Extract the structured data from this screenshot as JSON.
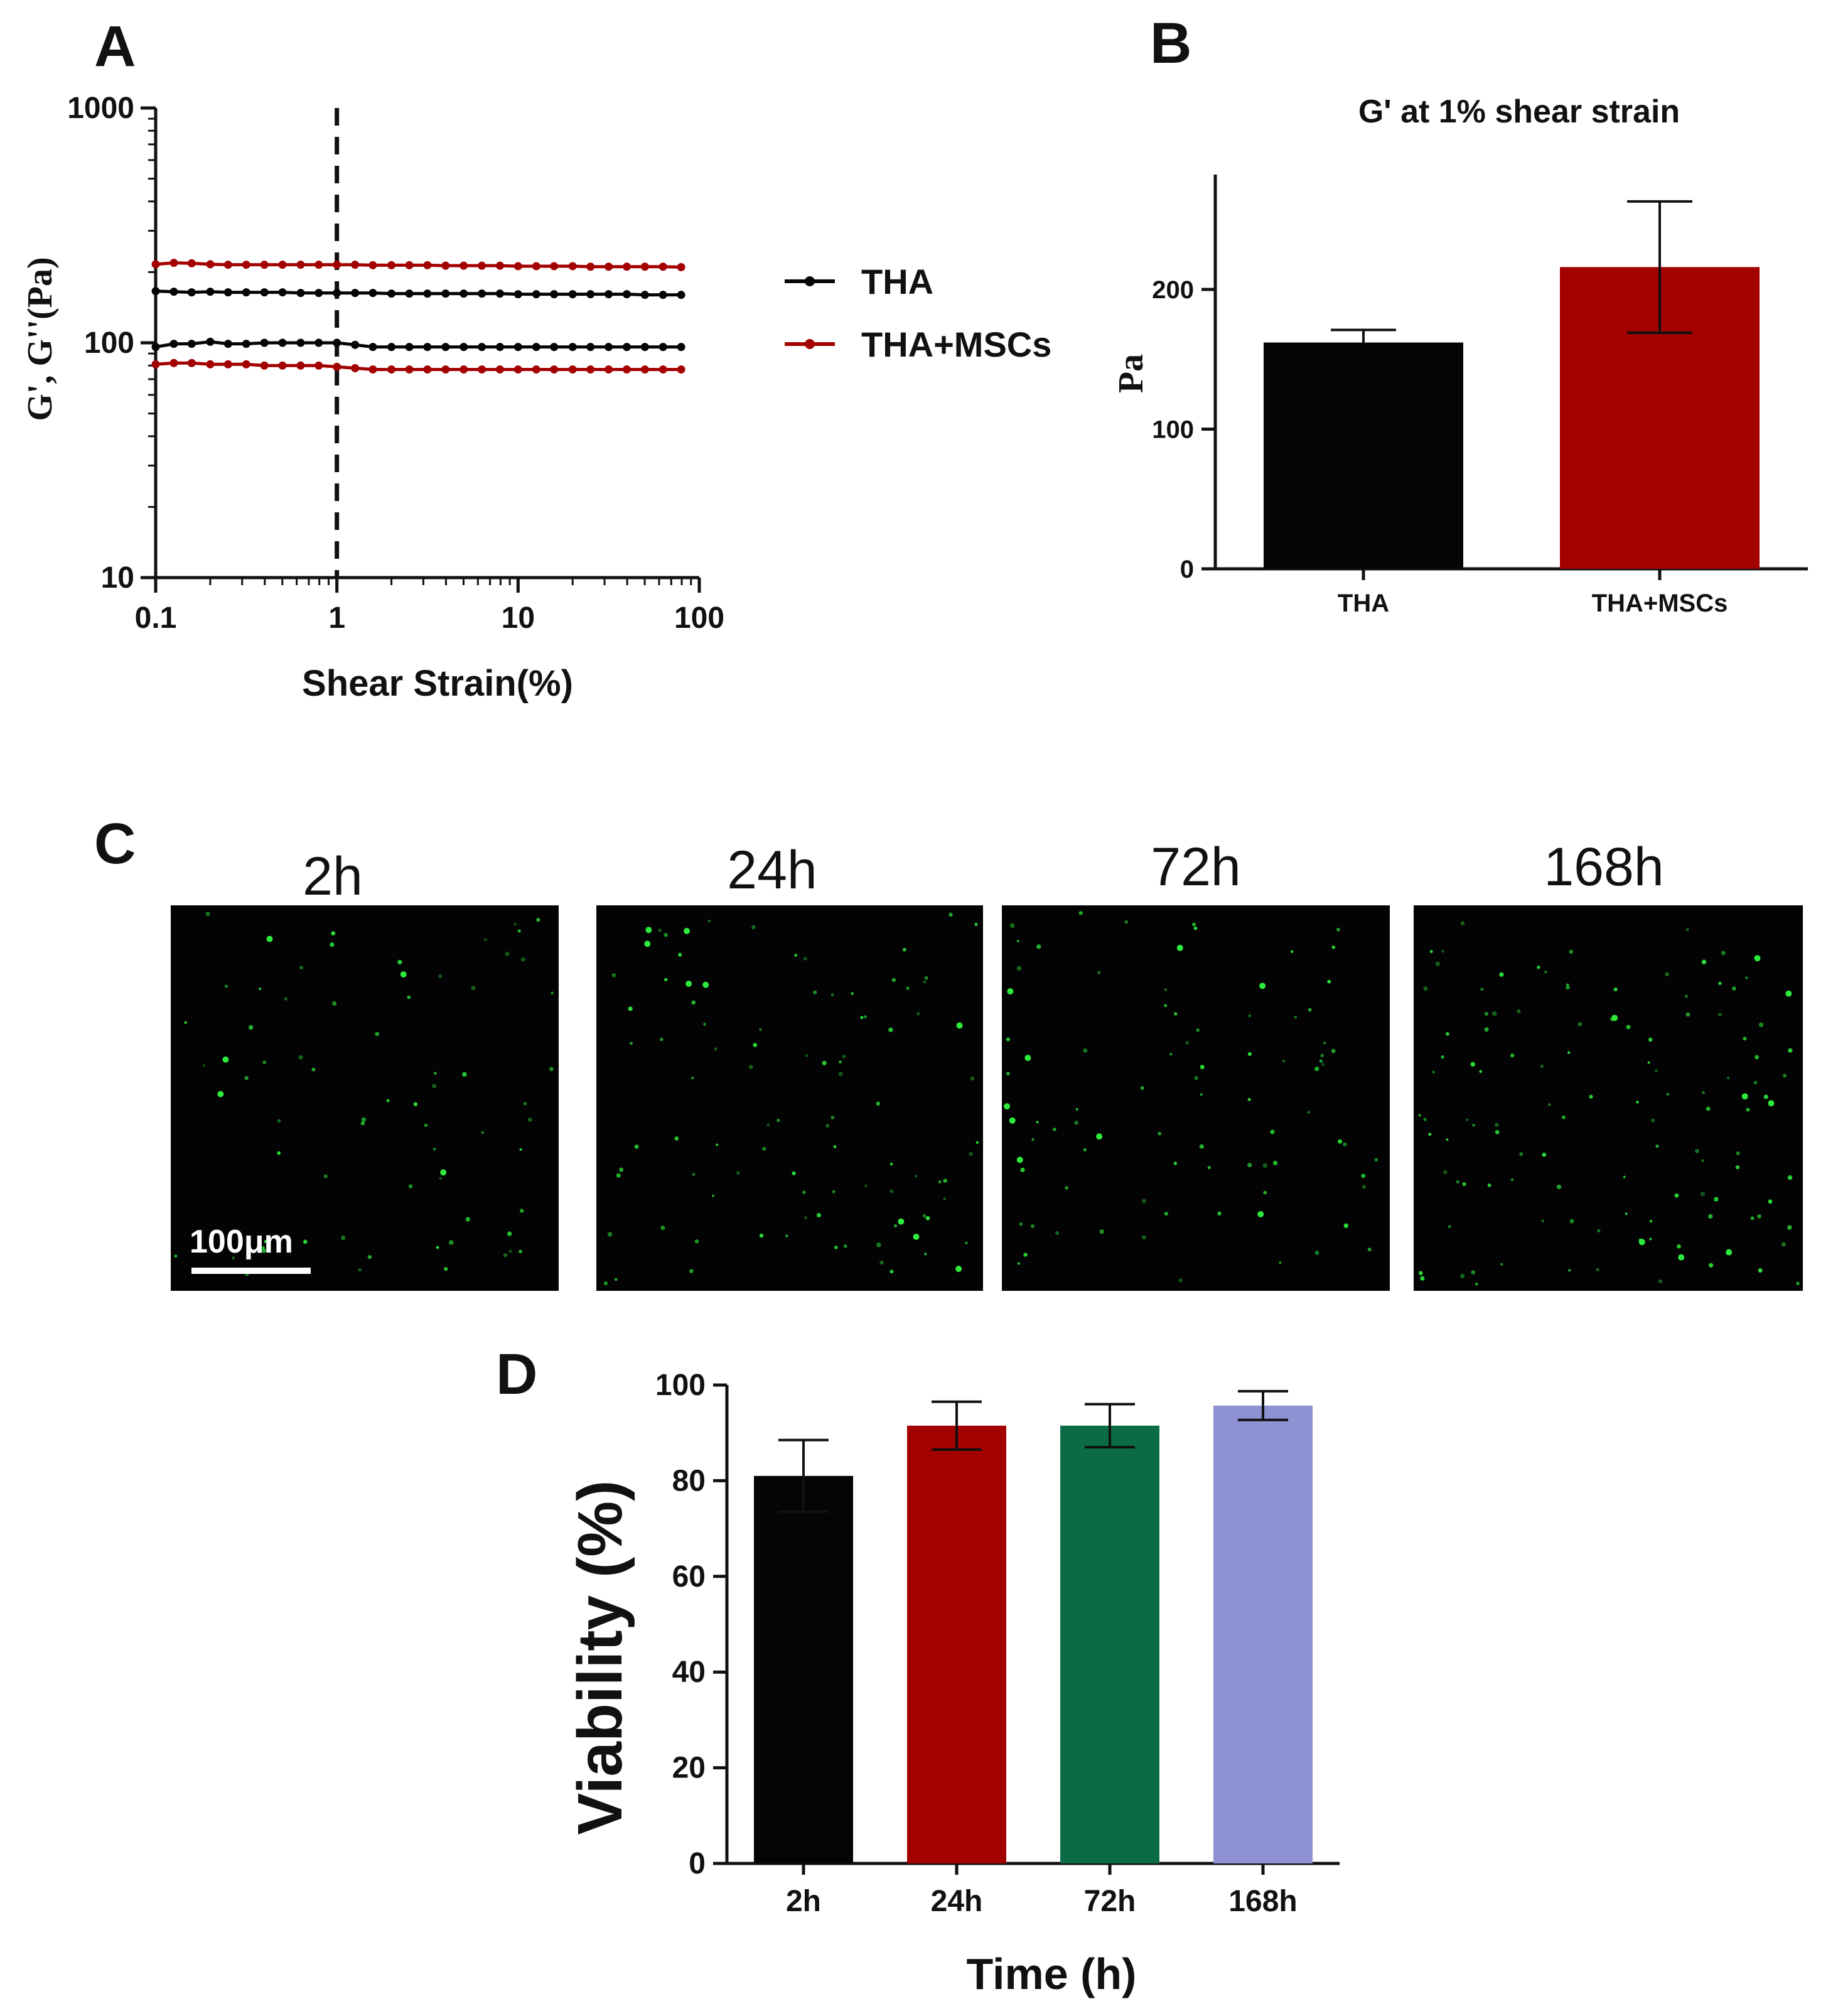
{
  "panels": {
    "a": {
      "letter": "A"
    },
    "b": {
      "letter": "B"
    },
    "c": {
      "letter": "C",
      "scale_bar": "100μm",
      "times": [
        "2h",
        "24h",
        "72h",
        "168h"
      ]
    },
    "d": {
      "letter": "D"
    }
  },
  "colors": {
    "black": "#050505",
    "red": "#a30000",
    "green": "#0a6b45",
    "lavender": "#8e92d3",
    "cell": "#2eea3c",
    "micro_bg": "#020302"
  },
  "chart_data": [
    {
      "id": "A",
      "type": "line",
      "scale": "log-log",
      "xlabel": "Shear Strain(%)",
      "ylabel": "G', G''(Pa)",
      "xlim": [
        0.1,
        100
      ],
      "ylim": [
        10,
        1000
      ],
      "xticks": [
        "0.1",
        "1",
        "10",
        "100"
      ],
      "yticks": [
        "10",
        "100",
        "1000"
      ],
      "reference_line_x": 1,
      "x": [
        0.1,
        0.126,
        0.158,
        0.2,
        0.251,
        0.316,
        0.398,
        0.501,
        0.631,
        0.794,
        1.0,
        1.26,
        1.58,
        2.0,
        2.51,
        3.16,
        3.98,
        5.01,
        6.31,
        7.94,
        10.0,
        12.6,
        15.8,
        20.0,
        25.1,
        31.6,
        39.8,
        50.1,
        63.1,
        79.4
      ],
      "legend": [
        {
          "name": "THA",
          "color": "#050505"
        },
        {
          "name": "THA+MSCs",
          "color": "#a30000"
        }
      ],
      "series": [
        {
          "name": "THA G'",
          "legend": "THA",
          "color": "#050505",
          "values": [
            166,
            165,
            164,
            165,
            164,
            164,
            164,
            164,
            163,
            163,
            163,
            163,
            163,
            162,
            162,
            162,
            162,
            162,
            162,
            162,
            161,
            161,
            161,
            161,
            161,
            161,
            161,
            160,
            160,
            160
          ]
        },
        {
          "name": "THA G''",
          "legend": "THA",
          "color": "#050505",
          "values": [
            96,
            99,
            99,
            101,
            99,
            99,
            100,
            100,
            100,
            100,
            100,
            98,
            96,
            96,
            96,
            96,
            96,
            96,
            96,
            96,
            96,
            96,
            96,
            96,
            96,
            96,
            96,
            96,
            96,
            96
          ]
        },
        {
          "name": "THA+MSCs G'",
          "legend": "THA+MSCs",
          "color": "#a30000",
          "values": [
            216,
            219,
            218,
            216,
            215,
            215,
            215,
            215,
            215,
            215,
            215,
            215,
            214,
            214,
            214,
            214,
            213,
            213,
            213,
            213,
            212,
            212,
            212,
            212,
            211,
            211,
            211,
            211,
            211,
            210
          ]
        },
        {
          "name": "THA+MSCs G''",
          "legend": "THA+MSCs",
          "color": "#a30000",
          "values": [
            81,
            82,
            82,
            81,
            81,
            81,
            80,
            80,
            80,
            80,
            79,
            78,
            77,
            77,
            77,
            77,
            77,
            77,
            77,
            77,
            77,
            77,
            77,
            77,
            77,
            77,
            77,
            77,
            77,
            77
          ]
        }
      ]
    },
    {
      "id": "B",
      "type": "bar",
      "title": "G' at 1% shear strain",
      "ylabel": "Pa",
      "xlabel": "",
      "ylim": [
        0,
        280
      ],
      "yticks": [
        "0",
        "100",
        "200"
      ],
      "categories": [
        "THA",
        "THA+MSCs"
      ],
      "values": [
        162,
        216
      ],
      "errors": [
        9,
        47
      ],
      "error_style": "upper-only",
      "colors": [
        "#050505",
        "#a30000"
      ]
    },
    {
      "id": "D",
      "type": "bar",
      "xlabel": "Time (h)",
      "ylabel": "Viability (%)",
      "ylim": [
        0,
        100
      ],
      "yticks": [
        "0",
        "20",
        "40",
        "60",
        "80",
        "100"
      ],
      "categories": [
        "2h",
        "24h",
        "72h",
        "168h"
      ],
      "values": [
        81,
        91.5,
        91.5,
        95.7
      ],
      "errors": [
        7.5,
        5,
        4.5,
        3
      ],
      "colors": [
        "#050505",
        "#a30000",
        "#0a6b45",
        "#8e92d3"
      ]
    }
  ]
}
